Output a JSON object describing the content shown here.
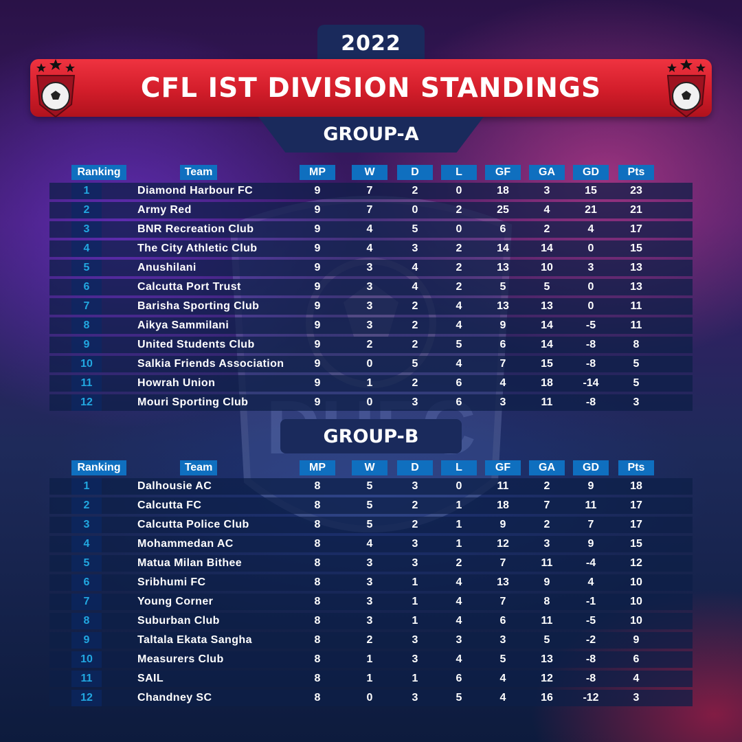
{
  "year": "2022",
  "title": "CFL IST DIVISION STANDINGS",
  "columns": [
    "Ranking",
    "Team",
    "MP",
    "W",
    "D",
    "L",
    "GF",
    "GA",
    "GD",
    "Pts"
  ],
  "groups": [
    {
      "name": "GROUP-A",
      "rows": [
        [
          "1",
          "Diamond Harbour FC",
          "9",
          "7",
          "2",
          "0",
          "18",
          "3",
          "15",
          "23"
        ],
        [
          "2",
          "Army Red",
          "9",
          "7",
          "0",
          "2",
          "25",
          "4",
          "21",
          "21"
        ],
        [
          "3",
          "BNR Recreation Club",
          "9",
          "4",
          "5",
          "0",
          "6",
          "2",
          "4",
          "17"
        ],
        [
          "4",
          "The City Athletic Club",
          "9",
          "4",
          "3",
          "2",
          "14",
          "14",
          "0",
          "15"
        ],
        [
          "5",
          "Anushilani",
          "9",
          "3",
          "4",
          "2",
          "13",
          "10",
          "3",
          "13"
        ],
        [
          "6",
          "Calcutta Port Trust",
          "9",
          "3",
          "4",
          "2",
          "5",
          "5",
          "0",
          "13"
        ],
        [
          "7",
          "Barisha Sporting Club",
          "9",
          "3",
          "2",
          "4",
          "13",
          "13",
          "0",
          "11"
        ],
        [
          "8",
          "Aikya Sammilani",
          "9",
          "3",
          "2",
          "4",
          "9",
          "14",
          "-5",
          "11"
        ],
        [
          "9",
          "United Students Club",
          "9",
          "2",
          "2",
          "5",
          "6",
          "14",
          "-8",
          "8"
        ],
        [
          "10",
          "Salkia Friends Association",
          "9",
          "0",
          "5",
          "4",
          "7",
          "15",
          "-8",
          "5"
        ],
        [
          "11",
          "Howrah Union",
          "9",
          "1",
          "2",
          "6",
          "4",
          "18",
          "-14",
          "5"
        ],
        [
          "12",
          "Mouri Sporting Club",
          "9",
          "0",
          "3",
          "6",
          "3",
          "11",
          "-8",
          "3"
        ]
      ]
    },
    {
      "name": "GROUP-B",
      "rows": [
        [
          "1",
          "Dalhousie AC",
          "8",
          "5",
          "3",
          "0",
          "11",
          "2",
          "9",
          "18"
        ],
        [
          "2",
          "Calcutta FC",
          "8",
          "5",
          "2",
          "1",
          "18",
          "7",
          "11",
          "17"
        ],
        [
          "3",
          "Calcutta Police Club",
          "8",
          "5",
          "2",
          "1",
          "9",
          "2",
          "7",
          "17"
        ],
        [
          "4",
          "Mohammedan AC",
          "8",
          "4",
          "3",
          "1",
          "12",
          "3",
          "9",
          "15"
        ],
        [
          "5",
          "Matua Milan Bithee",
          "8",
          "3",
          "3",
          "2",
          "7",
          "11",
          "-4",
          "12"
        ],
        [
          "6",
          "Sribhumi FC",
          "8",
          "3",
          "1",
          "4",
          "13",
          "9",
          "4",
          "10"
        ],
        [
          "7",
          "Young Corner",
          "8",
          "3",
          "1",
          "4",
          "7",
          "8",
          "-1",
          "10"
        ],
        [
          "8",
          "Suburban Club",
          "8",
          "3",
          "1",
          "4",
          "6",
          "11",
          "-5",
          "10"
        ],
        [
          "9",
          "Taltala Ekata Sangha",
          "8",
          "2",
          "3",
          "3",
          "3",
          "5",
          "-2",
          "9"
        ],
        [
          "10",
          "Measurers Club",
          "8",
          "1",
          "3",
          "4",
          "5",
          "13",
          "-8",
          "6"
        ],
        [
          "11",
          "SAIL",
          "8",
          "1",
          "1",
          "6",
          "4",
          "12",
          "-8",
          "4"
        ],
        [
          "12",
          "Chandney SC",
          "8",
          "0",
          "3",
          "5",
          "4",
          "16",
          "-12",
          "3"
        ]
      ]
    }
  ],
  "watermark_text": "DHFC",
  "colors": {
    "banner_red": "#d21d2a",
    "tab_navy": "#1a2a5c",
    "header_blue": "#0f6fbf",
    "rank_cyan": "#22a7e0"
  }
}
